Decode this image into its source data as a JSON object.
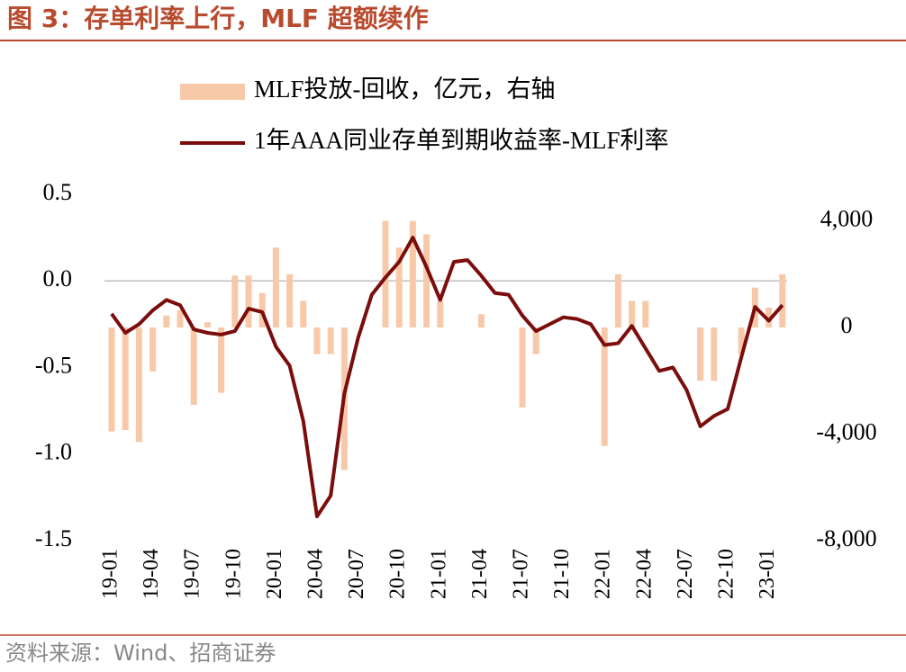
{
  "chart_data": {
    "type": "bar_line",
    "title": "图 3：存单利率上行，MLF 超额续作",
    "source": "资料来源：Wind、招商证券",
    "categories": [
      "19-01",
      null,
      null,
      "19-04",
      null,
      null,
      "19-07",
      null,
      null,
      "19-10",
      null,
      null,
      "20-01",
      null,
      null,
      "20-04",
      null,
      null,
      "20-07",
      null,
      null,
      "20-10",
      null,
      null,
      "21-01",
      null,
      null,
      "21-04",
      null,
      null,
      "21-07",
      null,
      null,
      "21-10",
      null,
      null,
      "22-01",
      null,
      null,
      "22-04",
      null,
      null,
      "22-07",
      null,
      null,
      "22-10",
      null,
      null,
      "23-01",
      null
    ],
    "series": [
      {
        "name": "MLF投放-回收，亿元，右轴",
        "type": "bar",
        "axis": "y2",
        "color": "#f8c9a9",
        "values": [
          -3900,
          -3850,
          -4300,
          -1650,
          450,
          650,
          -2900,
          200,
          -2450,
          1950,
          1950,
          1300,
          3000,
          2000,
          1000,
          -1000,
          -1000,
          -5350,
          0,
          0,
          4000,
          3000,
          4000,
          3500,
          1000,
          0,
          0,
          500,
          0,
          0,
          -3000,
          -1000,
          0,
          0,
          0,
          0,
          -4450,
          2000,
          1000,
          1000,
          0,
          0,
          0,
          -2000,
          -2000,
          0,
          -1000,
          1500,
          750,
          2000
        ]
      },
      {
        "name": "1年AAA同业存单到期收益率-MLF利率",
        "type": "line",
        "axis": "y",
        "color": "#7b0d0d",
        "values": [
          -0.19,
          -0.3,
          -0.25,
          -0.17,
          -0.11,
          -0.14,
          -0.28,
          -0.3,
          -0.31,
          -0.29,
          -0.16,
          -0.18,
          -0.38,
          -0.49,
          -0.81,
          -1.36,
          -1.24,
          -0.65,
          -0.33,
          -0.08,
          0.02,
          0.11,
          0.25,
          0.08,
          -0.11,
          0.11,
          0.12,
          0.03,
          -0.07,
          -0.08,
          -0.2,
          -0.29,
          -0.25,
          -0.21,
          -0.22,
          -0.25,
          -0.37,
          -0.36,
          -0.26,
          -0.39,
          -0.52,
          -0.5,
          -0.63,
          -0.84,
          -0.78,
          -0.74,
          -0.44,
          -0.15,
          -0.23,
          -0.14
        ]
      }
    ],
    "ylim": [
      -1.5,
      0.5
    ],
    "yticks": [
      {
        "value": 0.5,
        "label": "0.5"
      },
      {
        "value": 0,
        "label": "0.0"
      },
      {
        "value": -0.5,
        "label": "-0.5"
      },
      {
        "value": -1,
        "label": "-1.0"
      },
      {
        "value": -1.5,
        "label": "-1.5"
      }
    ],
    "y2lim": [
      -8000,
      5000
    ],
    "y2ticks": [
      {
        "value": 4000,
        "label": "4,000"
      },
      0,
      {
        "value": -4000,
        "label": "-4,000"
      },
      {
        "value": -8000,
        "label": "-8,000"
      }
    ]
  }
}
